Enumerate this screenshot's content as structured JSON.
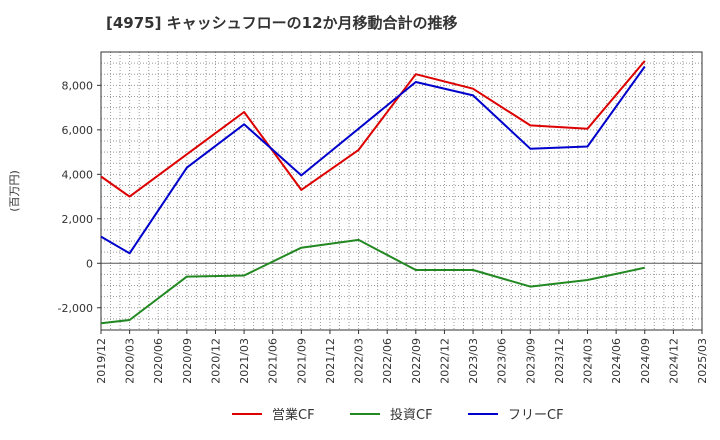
{
  "chart_data": {
    "type": "line",
    "title": "[4975]  キャッシュフローの12か月移動合計の推移",
    "xlabel": "",
    "ylabel": "(百万円)",
    "x": [
      "2019/12",
      "2020/03",
      "2020/06",
      "2020/09",
      "2020/12",
      "2021/03",
      "2021/06",
      "2021/09",
      "2021/12",
      "2022/03",
      "2022/06",
      "2022/09",
      "2022/12",
      "2023/03",
      "2023/06",
      "2023/09",
      "2023/12",
      "2024/03",
      "2024/06",
      "2024/09",
      "2024/12",
      "2025/03"
    ],
    "ylim": [
      -3000,
      9500
    ],
    "yticks": [
      -2000,
      0,
      2000,
      4000,
      6000,
      8000
    ],
    "ytick_labels": [
      "-2,000",
      "0",
      "2,000",
      "4,000",
      "6,000",
      "8,000"
    ],
    "grid": true,
    "legend_position": "bottom",
    "series": [
      {
        "name": "営業CF",
        "color": "#dd0000",
        "values": [
          3900,
          3000,
          null,
          null,
          null,
          6800,
          null,
          3300,
          null,
          5100,
          null,
          8500,
          null,
          7850,
          null,
          6200,
          null,
          6050,
          null,
          9100,
          null,
          null
        ],
        "dates": [
          "2019/12",
          "2020/03",
          "2021/03",
          "2021/09",
          "2022/03",
          "2022/09",
          "2023/03",
          "2023/09",
          "2024/03",
          "2024/09"
        ]
      },
      {
        "name": "投資CF",
        "color": "#228822",
        "values": [
          -2700,
          -2550,
          null,
          -600,
          null,
          -550,
          null,
          700,
          null,
          1050,
          null,
          -300,
          null,
          -300,
          null,
          -1050,
          null,
          -750,
          null,
          -200,
          null,
          null
        ],
        "dates": [
          "2019/12",
          "2020/03",
          "2020/09",
          "2021/03",
          "2021/09",
          "2022/03",
          "2022/09",
          "2023/03",
          "2023/09",
          "2024/03",
          "2024/09"
        ]
      },
      {
        "name": "フリーCF",
        "color": "#0000cc",
        "values": [
          1200,
          450,
          null,
          4300,
          null,
          6250,
          null,
          3950,
          null,
          null,
          null,
          8150,
          null,
          7550,
          null,
          5150,
          null,
          5250,
          null,
          8850,
          null,
          null
        ],
        "dates": [
          "2019/12",
          "2020/03",
          "2020/09",
          "2021/03",
          "2021/09",
          "2022/09",
          "2023/03",
          "2023/09",
          "2024/03",
          "2024/09"
        ]
      }
    ]
  }
}
